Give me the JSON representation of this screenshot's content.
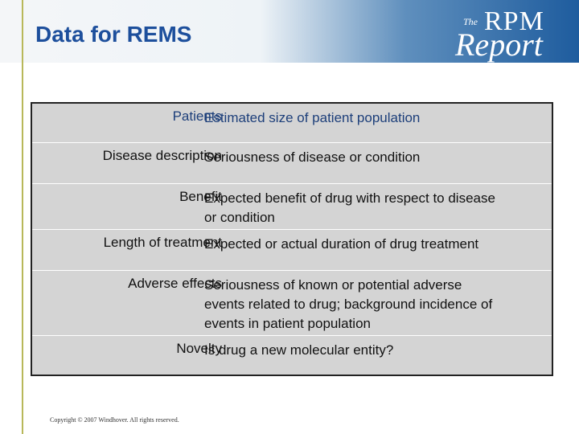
{
  "slide": {
    "title": "Data for REMS",
    "logo": {
      "the": "The",
      "rpm": "RPM",
      "report": "Report"
    },
    "footer": "Copyright © 2007 Windhover.  All rights reserved."
  },
  "table": {
    "rows": [
      {
        "label": "Patients",
        "lines": [
          "Estimated size of patient population"
        ]
      },
      {
        "label": "Disease description",
        "lines": [
          "Seriousness of disease or condition"
        ]
      },
      {
        "label": "Benefit",
        "lines": [
          "Expected benefit of drug with respect to disease",
          "or condition"
        ]
      },
      {
        "label": "Length of treatment",
        "lines": [
          "Expected or actual duration of drug treatment"
        ]
      },
      {
        "label": "Adverse effects",
        "lines": [
          "Seriousness of known or potential adverse",
          "events related to drug; background incidence of",
          "events in patient population"
        ]
      },
      {
        "label": "Novelty",
        "lines": [
          "Is drug a new molecular entity?"
        ]
      }
    ]
  },
  "colors": {
    "title": "#1d4f9c",
    "table_fill": "#d4d4d4",
    "header_blue": "#1e5c9e"
  }
}
